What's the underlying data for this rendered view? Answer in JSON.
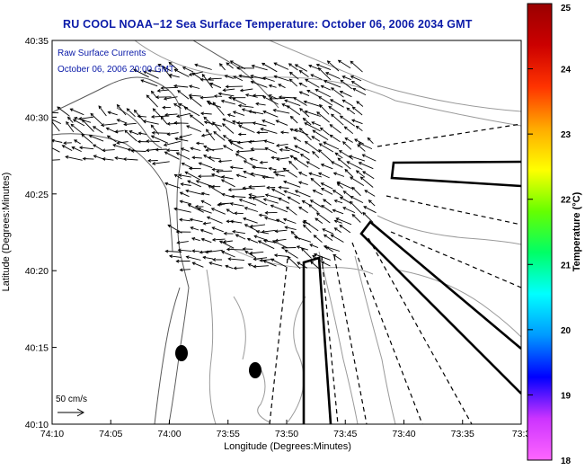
{
  "title": "RU COOL  NOAA−12  Sea Surface Temperature:  October 06, 2006 2034 GMT",
  "legend": {
    "line1": "Raw Surface Currents",
    "line2": "October 06, 2006 20:00 GMT"
  },
  "scale_label": "50 cm/s",
  "axes": {
    "xlabel": "Longitude (Degrees:Minutes)",
    "ylabel": "Latitude (Degrees:Minutes)",
    "x_ticks": [
      "74:10",
      "74:05",
      "74:00",
      "73:55",
      "73:50",
      "73:45",
      "73:40",
      "73:35",
      "73:3"
    ],
    "y_ticks": [
      "40:35",
      "40:30",
      "40:25",
      "40:20",
      "40:15",
      "40:10"
    ]
  },
  "colorbar": {
    "label": "Temperature (°C)",
    "ticks": [
      "25",
      "24",
      "23",
      "22",
      "21",
      "20",
      "19",
      "18"
    ],
    "min": 18,
    "max": 25,
    "colors": [
      "#ff66ff",
      "#cc33ff",
      "#0000ff",
      "#0099ff",
      "#00ffff",
      "#00ff66",
      "#66ff00",
      "#ffff00",
      "#ffaa00",
      "#ff3300",
      "#cc0000",
      "#990000"
    ]
  }
}
